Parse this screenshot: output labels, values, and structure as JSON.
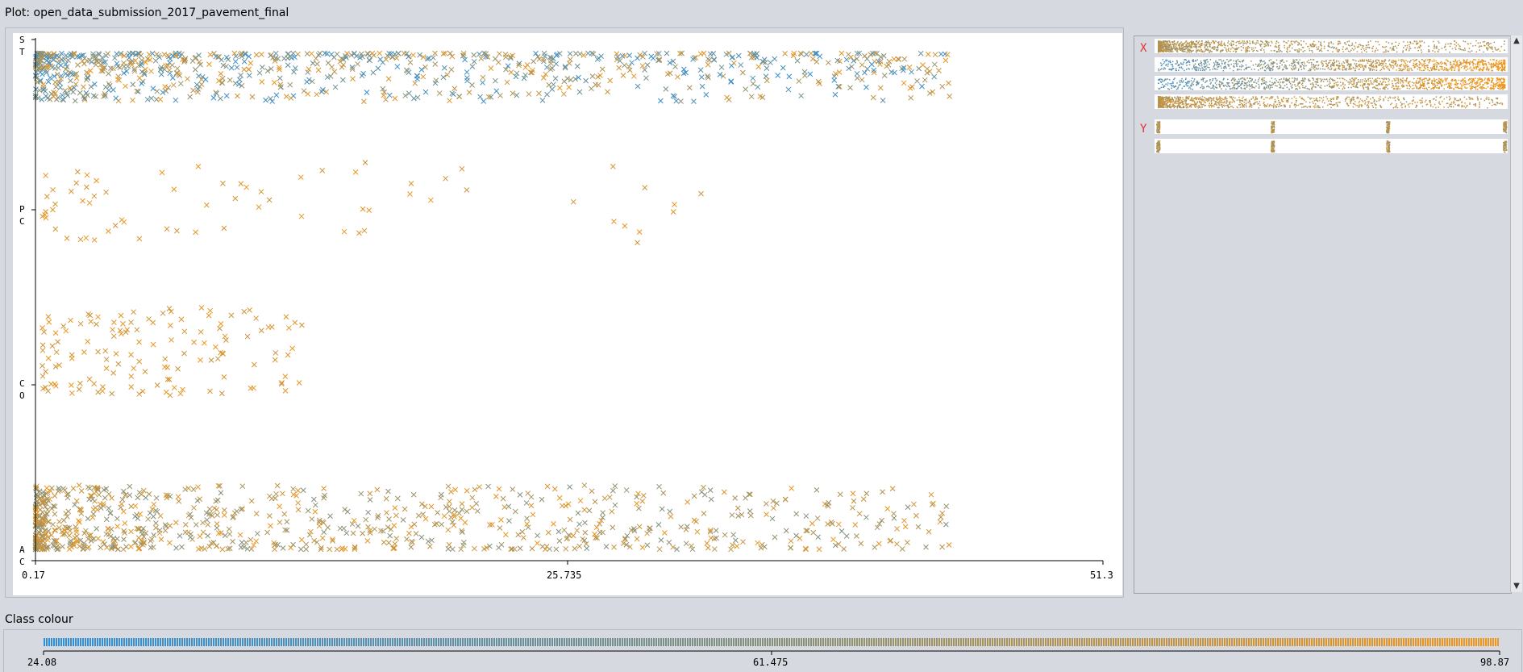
{
  "window": {
    "title": "Plot: open_data_submission_2017_pavement_final"
  },
  "legend": {
    "label": "Class colour"
  },
  "side_panel": {
    "x_label": "X",
    "y_label": "Y"
  },
  "colors": {
    "low": "#2f8fd8",
    "mid": "#86917a",
    "high": "#f0961a",
    "axis_label_red": "#e53030"
  },
  "chart_data": {
    "type": "scatter",
    "x_ticks": [
      "0.17",
      "25.735",
      "51.3"
    ],
    "xlim": [
      0.17,
      51.3
    ],
    "y_categories": [
      {
        "code": "A",
        "sub": "C"
      },
      {
        "code": "C",
        "sub": "O"
      },
      {
        "code": "P",
        "sub": "C"
      },
      {
        "code": "S",
        "sub": "T"
      }
    ],
    "color_scale": {
      "min": 24.08,
      "mid": 61.475,
      "max": 98.87,
      "ticks": [
        "24.08",
        "61.475",
        "98.87"
      ]
    },
    "cluster_approx": [
      {
        "category": "A",
        "x_range": [
          0.17,
          44
        ],
        "density": "high",
        "dominant_colors": [
          "high",
          "mid"
        ]
      },
      {
        "category": "C",
        "x_range": [
          0.5,
          13
        ],
        "density": "medium",
        "dominant_colors": [
          "high"
        ]
      },
      {
        "category": "P",
        "x_range": [
          0.5,
          35
        ],
        "density": "low",
        "dominant_colors": [
          "high"
        ]
      },
      {
        "category": "S",
        "x_range": [
          0.17,
          44
        ],
        "density": "high",
        "dominant_colors": [
          "low",
          "mid",
          "high"
        ]
      }
    ]
  }
}
